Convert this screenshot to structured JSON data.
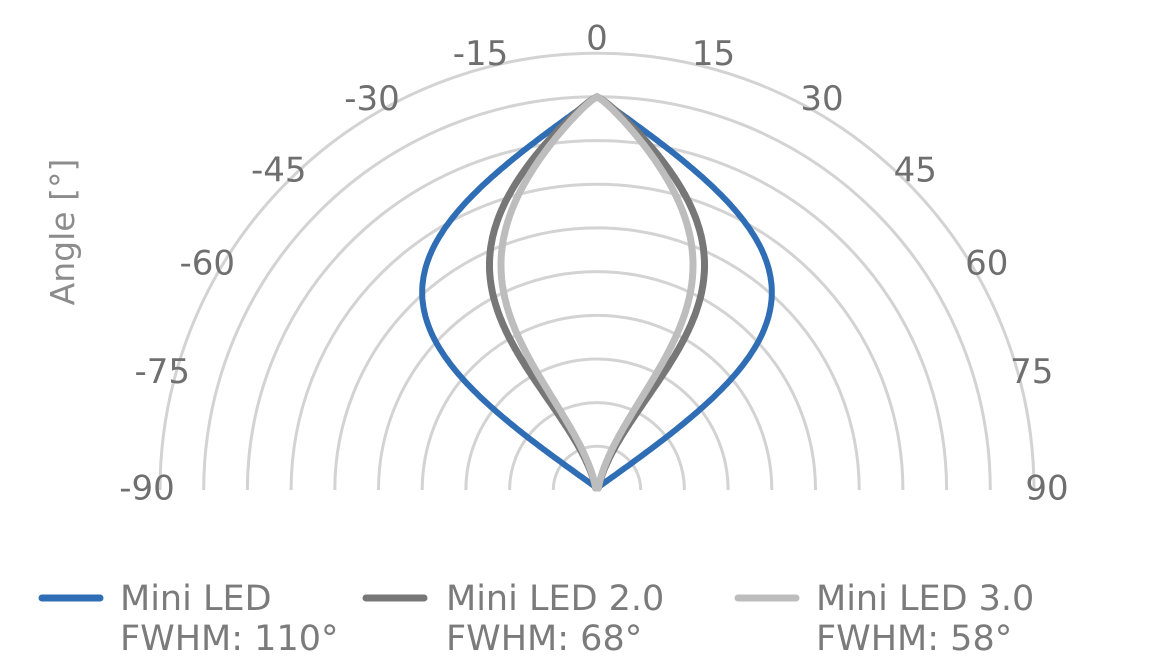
{
  "chart_data": {
    "type": "polar",
    "title": "",
    "ylabel": "Angle [°]",
    "angle_range": [
      -90,
      90
    ],
    "angle_ticks": [
      -90,
      -75,
      -60,
      -45,
      -30,
      -15,
      0,
      15,
      30,
      45,
      60,
      75,
      90
    ],
    "tick_labels": [
      "-90",
      "-75",
      "-60",
      "-45",
      "-30",
      "-15",
      "0",
      "15",
      "30",
      "45",
      "60",
      "75",
      "90"
    ],
    "grid": true,
    "legend_position": "bottom",
    "series": [
      {
        "name": "Mini LED",
        "fwhm": "FWHM: 110°",
        "fwhm_deg": 110,
        "color": "#2f6db5"
      },
      {
        "name": "Mini LED 2.0",
        "fwhm": "FWHM: 68°",
        "fwhm_deg": 68,
        "color": "#777777"
      },
      {
        "name": "Mini LED 3.0",
        "fwhm": "FWHM: 58°",
        "fwhm_deg": 58,
        "color": "#bdbdbd"
      }
    ]
  }
}
